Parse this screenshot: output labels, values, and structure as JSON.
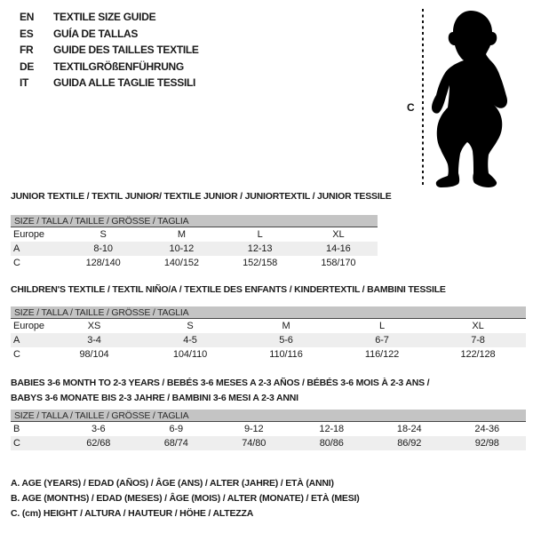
{
  "header": {
    "languages": [
      {
        "code": "EN",
        "title": "TEXTILE SIZE GUIDE"
      },
      {
        "code": "ES",
        "title": "GUÍA DE TALLAS"
      },
      {
        "code": "FR",
        "title": "GUIDE DES TAILLES TEXTILE"
      },
      {
        "code": "DE",
        "title": "TEXTILGRÖßENFÜHRUNG"
      },
      {
        "code": "IT",
        "title": "GUIDA ALLE TAGLIE TESSILI"
      }
    ]
  },
  "figure": {
    "label": "C",
    "description": "standing toddler silhouette with dashed height measure line"
  },
  "tables": [
    {
      "title": "JUNIOR TEXTILE / TEXTIL JUNIOR/ TEXTILE JUNIOR / JUNIORTEXTIL / JUNIOR TESSILE",
      "size_header": "SIZE / TALLA / TAILLE / GRÖSSE / TAGLIA",
      "rows": [
        [
          "Europe",
          "S",
          "M",
          "L",
          "XL"
        ],
        [
          "A",
          "8-10",
          "10-12",
          "12-13",
          "14-16"
        ],
        [
          "C",
          "128/140",
          "140/152",
          "152/158",
          "158/170"
        ]
      ]
    },
    {
      "title": "CHILDREN'S TEXTILE / TEXTIL NIÑO/A / TEXTILE DES ENFANTS / KINDERTEXTIL / BAMBINI TESSILE",
      "size_header": "SIZE / TALLA / TAILLE / GRÖSSE / TAGLIA",
      "rows": [
        [
          "Europe",
          "XS",
          "S",
          "M",
          "L",
          "XL"
        ],
        [
          "A",
          "3-4",
          "4-5",
          "5-6",
          "6-7",
          "7-8"
        ],
        [
          "C",
          "98/104",
          "104/110",
          "110/116",
          "116/122",
          "122/128"
        ]
      ]
    },
    {
      "title_line1": "BABIES 3-6 MONTH TO 2-3 YEARS / BEBÉS 3-6 MESES A 2-3 AÑOS / BÉBÉS 3-6 MOIS À 2-3 ANS /",
      "title_line2": "BABYS 3-6 MONATE BIS 2-3 JAHRE / BAMBINI 3-6 MESI A 2-3 ANNI",
      "size_header": "SIZE / TALLA / TAILLE / GRÖSSE / TAGLIA",
      "rows": [
        [
          "B",
          "3-6",
          "6-9",
          "9-12",
          "12-18",
          "18-24",
          "24-36"
        ],
        [
          "C",
          "62/68",
          "68/74",
          "74/80",
          "80/86",
          "86/92",
          "92/98"
        ]
      ]
    }
  ],
  "notes": [
    "A. AGE (YEARS) / EDAD (AÑOS) / ÂGE (ANS) / ALTER (JAHRE) / ETÀ (ANNI)",
    "B. AGE (MONTHS) / EDAD (MESES) / ÂGE (MOIS) / ALTER (MONATE) / ETÀ (MESI)",
    "C. (cm) HEIGHT / ALTURA / HAUTEUR / HÖHE / ALTEZZA"
  ],
  "colors": {
    "header_band": "#c4c4c4",
    "row_stripe": "#eeeeee",
    "band_rule": "#474747",
    "text": "#1a1a1a",
    "silhouette": "#000000"
  }
}
